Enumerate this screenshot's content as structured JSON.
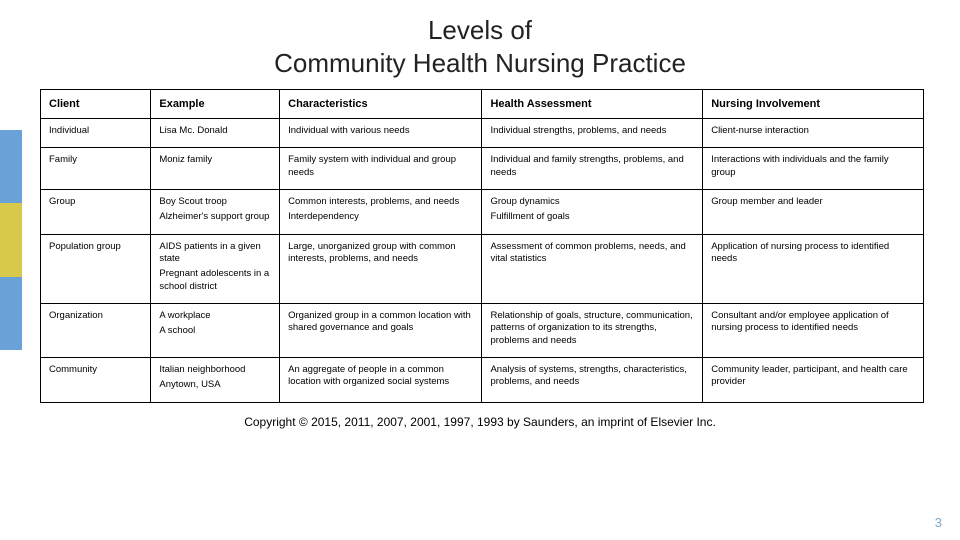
{
  "title": {
    "line1": "Levels of",
    "line2": "Community Health Nursing Practice"
  },
  "accent_colors": [
    "#6aa2d8",
    "#d9c94b",
    "#6aa2d8"
  ],
  "table": {
    "columns": [
      "Client",
      "Example",
      "Characteristics",
      "Health Assessment",
      "Nursing Involvement"
    ],
    "rows": [
      {
        "client": "Individual",
        "example": [
          "Lisa Mc. Donald"
        ],
        "characteristics": [
          "Individual with various needs"
        ],
        "assessment": [
          "Individual strengths, problems, and needs"
        ],
        "involvement": [
          "Client-nurse interaction"
        ]
      },
      {
        "client": "Family",
        "example": [
          "Moniz family"
        ],
        "characteristics": [
          "Family system with individual and group needs"
        ],
        "assessment": [
          "Individual and family strengths, problems, and needs"
        ],
        "involvement": [
          "Interactions with individuals and the family group"
        ]
      },
      {
        "client": "Group",
        "example": [
          "Boy Scout troop",
          "Alzheimer's support group"
        ],
        "characteristics": [
          "Common interests, problems, and needs",
          "Interdependency"
        ],
        "assessment": [
          "Group dynamics",
          "Fulfillment of goals"
        ],
        "involvement": [
          "Group member and leader"
        ]
      },
      {
        "client": "Population group",
        "example": [
          "AIDS patients in a given state",
          "Pregnant adolescents in a school district"
        ],
        "characteristics": [
          "Large, unorganized group with common interests, problems, and needs"
        ],
        "assessment": [
          "Assessment of common problems, needs, and vital statistics"
        ],
        "involvement": [
          "Application of nursing process to identified needs"
        ]
      },
      {
        "client": "Organization",
        "example": [
          "A workplace",
          "A school"
        ],
        "characteristics": [
          "Organized group in a common location with shared governance and goals"
        ],
        "assessment": [
          "Relationship of goals, structure, communication, patterns of organization to its strengths, problems and needs"
        ],
        "involvement": [
          "Consultant and/or employee application of nursing process to identified needs"
        ]
      },
      {
        "client": "Community",
        "example": [
          "Italian neighborhood",
          "Anytown, USA"
        ],
        "characteristics": [
          "An aggregate of people in a common location with organized social systems"
        ],
        "assessment": [
          "Analysis of systems, strengths, characteristics, problems, and needs"
        ],
        "involvement": [
          "Community leader, participant, and health care provider"
        ]
      }
    ]
  },
  "copyright": "Copyright © 2015, 2011, 2007, 2001, 1997, 1993 by Saunders, an imprint of Elsevier Inc.",
  "page_number": "3"
}
